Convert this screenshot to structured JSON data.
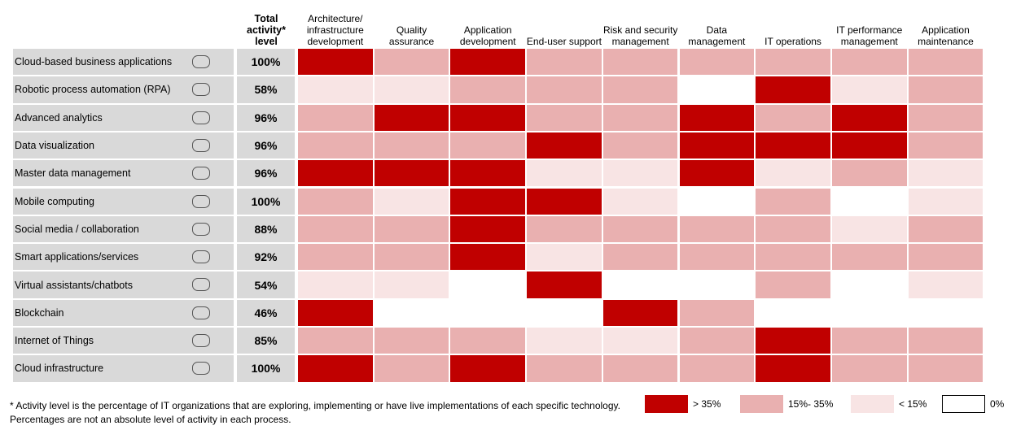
{
  "chart_data": {
    "type": "heatmap",
    "total_header": "Total activity* level",
    "columns": [
      "Architecture/ infrastructure development",
      "Quality assurance",
      "Application development",
      "End-user support",
      "Risk and security management",
      "Data management",
      "IT operations",
      "IT performance management",
      "Application maintenance"
    ],
    "categories": [
      "Cloud-based business applications",
      "Robotic process automation (RPA)",
      "Advanced analytics",
      "Data visualization",
      "Master data management",
      "Mobile computing",
      "Social media / collaboration",
      "Smart applications/services",
      "Virtual assistants/chatbots",
      "Blockchain",
      "Internet of Things",
      "Cloud infrastructure"
    ],
    "values": [
      100,
      58,
      96,
      96,
      96,
      100,
      88,
      92,
      54,
      46,
      85,
      100
    ],
    "value_labels": [
      "100%",
      "58%",
      "96%",
      "96%",
      "96%",
      "100%",
      "88%",
      "92%",
      "54%",
      "46%",
      "85%",
      "100%"
    ],
    "legend": [
      {
        "label": "> 35%",
        "color": "#c00000"
      },
      {
        "label": "15%- 35%",
        "color": "#e9b0b0"
      },
      {
        "label": "< 15%",
        "color": "#f8e4e4"
      },
      {
        "label": "0%",
        "color": "#ffffff"
      }
    ],
    "cells": [
      [
        "> 35%",
        "15%- 35%",
        "> 35%",
        "15%- 35%",
        "15%- 35%",
        "15%- 35%",
        "15%- 35%",
        "15%- 35%",
        "15%- 35%"
      ],
      [
        "< 15%",
        "< 15%",
        "15%- 35%",
        "15%- 35%",
        "15%- 35%",
        "0%",
        "> 35%",
        "< 15%",
        "15%- 35%"
      ],
      [
        "15%- 35%",
        "> 35%",
        "> 35%",
        "15%- 35%",
        "15%- 35%",
        "> 35%",
        "15%- 35%",
        "> 35%",
        "15%- 35%"
      ],
      [
        "15%- 35%",
        "15%- 35%",
        "15%- 35%",
        "> 35%",
        "15%- 35%",
        "> 35%",
        "> 35%",
        "> 35%",
        "15%- 35%"
      ],
      [
        "> 35%",
        "> 35%",
        "> 35%",
        "< 15%",
        "< 15%",
        "> 35%",
        "< 15%",
        "15%- 35%",
        "< 15%"
      ],
      [
        "15%- 35%",
        "< 15%",
        "> 35%",
        "> 35%",
        "< 15%",
        "0%",
        "15%- 35%",
        "0%",
        "< 15%"
      ],
      [
        "15%- 35%",
        "15%- 35%",
        "> 35%",
        "15%- 35%",
        "15%- 35%",
        "15%- 35%",
        "15%- 35%",
        "< 15%",
        "15%- 35%"
      ],
      [
        "15%- 35%",
        "15%- 35%",
        "> 35%",
        "< 15%",
        "15%- 35%",
        "15%- 35%",
        "15%- 35%",
        "15%- 35%",
        "15%- 35%"
      ],
      [
        "< 15%",
        "< 15%",
        "0%",
        "> 35%",
        "0%",
        "0%",
        "15%- 35%",
        "0%",
        "< 15%"
      ],
      [
        "> 35%",
        "0%",
        "0%",
        "0%",
        "> 35%",
        "15%- 35%",
        "0%",
        "0%",
        "0%"
      ],
      [
        "15%- 35%",
        "15%- 35%",
        "15%- 35%",
        "< 15%",
        "< 15%",
        "15%- 35%",
        "> 35%",
        "15%- 35%",
        "15%- 35%"
      ],
      [
        "> 35%",
        "15%- 35%",
        "> 35%",
        "15%- 35%",
        "15%- 35%",
        "15%- 35%",
        "> 35%",
        "15%- 35%",
        "15%- 35%"
      ]
    ],
    "footnote": "* Activity level is the percentage of IT organizations that are exploring, implementing or have live implementations of each specific technology. Percentages are not an absolute level of activity in each process."
  }
}
